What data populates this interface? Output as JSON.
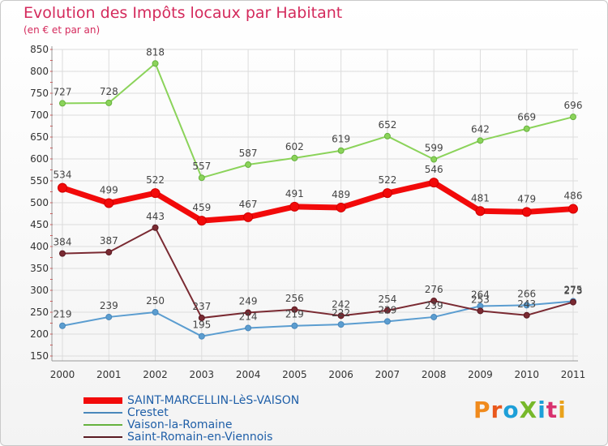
{
  "title": "Evolution des Impôts locaux par Habitant",
  "subtitle": "(en € et par an)",
  "logo_text": "ProXiti",
  "chart_data": {
    "type": "line",
    "x": [
      "2000",
      "2001",
      "2002",
      "2003",
      "2004",
      "2005",
      "2006",
      "2007",
      "2008",
      "2009",
      "2010",
      "2011"
    ],
    "ylim": [
      150,
      850
    ],
    "yticks": [
      150,
      200,
      250,
      300,
      350,
      400,
      450,
      500,
      550,
      600,
      650,
      700,
      750,
      800,
      850
    ],
    "grid": true,
    "legend_position": "bottom-left",
    "series": [
      {
        "name": "Crestet",
        "color": "#5b9dd0",
        "stroke": "#4a88bb",
        "width": 2,
        "values": [
          219,
          239,
          250,
          195,
          214,
          219,
          222,
          229,
          239,
          264,
          266,
          275
        ]
      },
      {
        "name": "Vaison-la-Romaine",
        "color": "#8bd35a",
        "stroke": "#66b23e",
        "width": 2,
        "values": [
          727,
          728,
          818,
          557,
          587,
          602,
          619,
          652,
          599,
          642,
          669,
          696
        ]
      },
      {
        "name": "Saint-Romain-en-Viennois",
        "color": "#7a2a32",
        "stroke": "#5a1a22",
        "width": 2,
        "values": [
          384,
          387,
          443,
          237,
          249,
          256,
          242,
          254,
          276,
          253,
          243,
          273
        ]
      },
      {
        "name": "SAINT-MARCELLIN-LèS-VAISON",
        "color": "#f20a0a",
        "stroke": "#d00000",
        "width": 7,
        "values": [
          534,
          499,
          522,
          459,
          467,
          491,
          489,
          522,
          546,
          481,
          479,
          486
        ]
      }
    ]
  }
}
